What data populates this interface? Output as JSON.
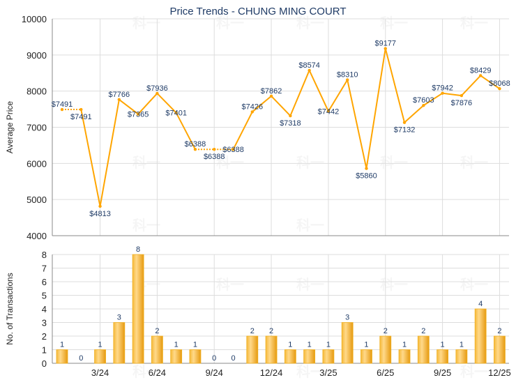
{
  "chart_data": [
    {
      "type": "line",
      "title": "Price Trends - CHUNG MING COURT",
      "ylabel": "Average Price",
      "ylim": [
        4000,
        10000
      ],
      "yticks": [
        "4000",
        "5000",
        "6000",
        "7000",
        "8000",
        "9000",
        "10000"
      ],
      "grid": true,
      "color": "#FFA500",
      "labelColor": "#1F3B66",
      "x": [
        "1/24",
        "2/24",
        "3/24",
        "4/24",
        "5/24",
        "6/24",
        "7/24",
        "8/24",
        "9/24",
        "10/24",
        "11/24",
        "12/24",
        "1/25",
        "2/25",
        "3/25",
        "4/25",
        "5/25",
        "6/25",
        "7/25",
        "8/25",
        "9/25",
        "10/25",
        "11/25",
        "12/25"
      ],
      "values": [
        7491,
        7491,
        4813,
        7766,
        7365,
        7936,
        7401,
        6388,
        6388,
        6388,
        7426,
        7862,
        7318,
        8574,
        7442,
        8310,
        5860,
        9177,
        7132,
        7603,
        7942,
        7876,
        8429,
        8068
      ],
      "labels": [
        "$7491",
        "$7491",
        "$4813",
        "$7766",
        "$7365",
        "$7936",
        "$7401",
        "$6388",
        "$6388",
        "$6388",
        "$7426",
        "$7862",
        "$7318",
        "$8574",
        "$7442",
        "$8310",
        "$5860",
        "$9177",
        "$7132",
        "$7603",
        "$7942",
        "$7876",
        "$8429",
        "$8068"
      ],
      "interpolated": [
        true,
        false,
        false,
        false,
        false,
        false,
        false,
        false,
        true,
        false,
        false,
        false,
        false,
        false,
        false,
        false,
        false,
        false,
        false,
        false,
        false,
        false,
        false,
        false
      ]
    },
    {
      "type": "bar",
      "ylabel": "No. of Transactions",
      "ylim": [
        0,
        8
      ],
      "yticks": [
        "0",
        "1",
        "2",
        "3",
        "4",
        "5",
        "6",
        "7",
        "8"
      ],
      "xticks": [
        "3/24",
        "6/24",
        "9/24",
        "12/24",
        "3/25",
        "6/25",
        "9/25",
        "12/25"
      ],
      "grid": true,
      "color": "#F0A830",
      "values": [
        1,
        0,
        1,
        3,
        8,
        2,
        1,
        1,
        0,
        0,
        2,
        2,
        1,
        1,
        1,
        3,
        1,
        2,
        1,
        2,
        1,
        1,
        4,
        2
      ]
    }
  ],
  "watermark": "科一"
}
